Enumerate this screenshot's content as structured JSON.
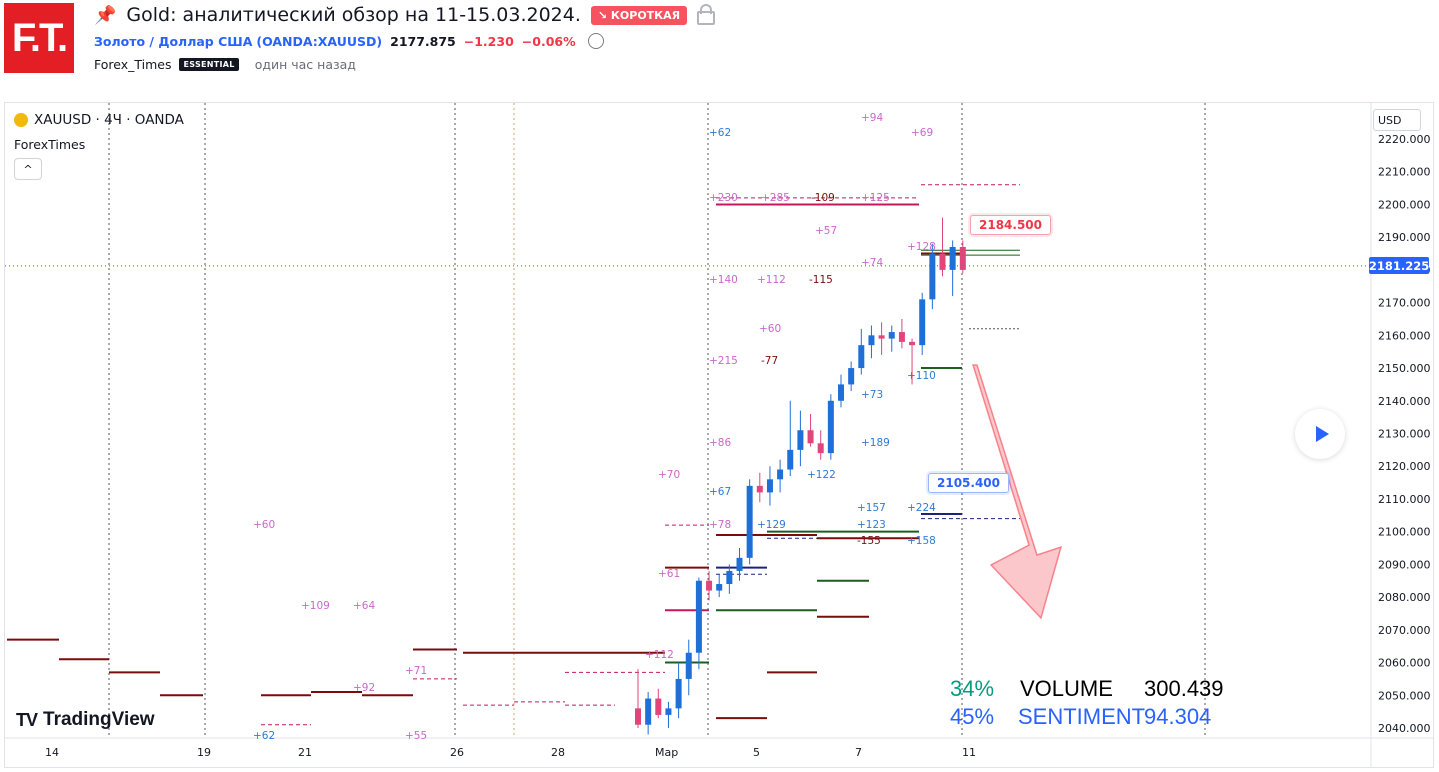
{
  "header": {
    "logo_text": "F.T.",
    "title": "Gold: аналитический обзор на 11-15.03.2024.",
    "badge": "↘ КОРОТКАЯ",
    "symbol_link": "Золото / Доллар США",
    "symbol_code": "(OANDA:XAUUSD)",
    "price": "2177.875",
    "change": "−1.230",
    "change_pct": "−0.06%",
    "author": "Forex_Times",
    "author_badge": "ESSENTIAL",
    "time_ago": "один час назад"
  },
  "chart": {
    "legend": "XAUUSD · 4Ч · OANDA",
    "author_label": "ForexTimes",
    "collapse_icon": "^",
    "currency": "USD",
    "last_price": "2181.225",
    "tag_red": "2184.500",
    "tag_blue": "2105.400",
    "tv_logo": "TradingView",
    "stats": {
      "volume_pct": "34%",
      "sentiment_pct": "45%",
      "volume_label": "VOLUME",
      "volume_value": "300.439",
      "sentiment_label": "SENTIMENT",
      "sentiment_value": "94.304"
    }
  },
  "chart_data": {
    "type": "candlestick",
    "symbol": "XAUUSD",
    "y_ticks": [
      2220,
      2210,
      2200,
      2190,
      2180,
      2170,
      2160,
      2150,
      2140,
      2130,
      2120,
      2110,
      2100,
      2090,
      2080,
      2070,
      2060,
      2050,
      2040
    ],
    "x_ticks": [
      "14",
      "19",
      "21",
      "26",
      "28",
      "Мар",
      "5",
      "7",
      "11"
    ],
    "ylim": [
      2036,
      2225
    ],
    "candles": [
      [
        2046,
        2058,
        2040,
        2041
      ],
      [
        2041,
        2051,
        2038,
        2049
      ],
      [
        2049,
        2052,
        2043,
        2044
      ],
      [
        2044,
        2048,
        2040,
        2046
      ],
      [
        2046,
        2060,
        2043,
        2055
      ],
      [
        2055,
        2067,
        2050,
        2063
      ],
      [
        2063,
        2086,
        2058,
        2085
      ],
      [
        2085,
        2088,
        2079,
        2082
      ],
      [
        2082,
        2087,
        2080,
        2084
      ],
      [
        2084,
        2090,
        2081,
        2088
      ],
      [
        2088,
        2095,
        2085,
        2092
      ],
      [
        2092,
        2116,
        2090,
        2114
      ],
      [
        2114,
        2118,
        2109,
        2112
      ],
      [
        2112,
        2120,
        2108,
        2116
      ],
      [
        2116,
        2122,
        2112,
        2119
      ],
      [
        2119,
        2140,
        2117,
        2125
      ],
      [
        2125,
        2137,
        2120,
        2131
      ],
      [
        2131,
        2136,
        2126,
        2127
      ],
      [
        2127,
        2131,
        2122,
        2124
      ],
      [
        2124,
        2142,
        2122,
        2140
      ],
      [
        2140,
        2148,
        2138,
        2145
      ],
      [
        2145,
        2152,
        2143,
        2150
      ],
      [
        2150,
        2162,
        2148,
        2157
      ],
      [
        2157,
        2163,
        2153,
        2160
      ],
      [
        2160,
        2164,
        2154,
        2159
      ],
      [
        2159,
        2163,
        2155,
        2161
      ],
      [
        2161,
        2165,
        2156,
        2158
      ],
      [
        2158,
        2159,
        2145,
        2157
      ],
      [
        2157,
        2173,
        2154,
        2171
      ],
      [
        2171,
        2188,
        2168,
        2185
      ],
      [
        2185,
        2196,
        2178,
        2180
      ],
      [
        2180,
        2189,
        2172,
        2187
      ],
      [
        2187,
        2189,
        2179,
        2180
      ]
    ],
    "levels_red": [
      2200,
      2184.5,
      2105.4,
      2098,
      2089,
      2076,
      2074,
      2063
    ],
    "annotations": [
      "+94",
      "+69",
      "+62",
      "+230",
      "+285",
      "-109",
      "+125",
      "+57",
      "+128",
      "+74",
      "+140",
      "+112",
      "-115",
      "+60",
      "+215",
      "-77",
      "+110",
      "+73",
      "+86",
      "+189",
      "+122",
      "+70",
      "+67",
      "+157",
      "+224",
      "+78",
      "+129",
      "+123",
      "-155",
      "+158",
      "+60",
      "+61",
      "+109",
      "+64",
      "+112",
      "+71",
      "+92",
      "+62",
      "+55"
    ]
  }
}
